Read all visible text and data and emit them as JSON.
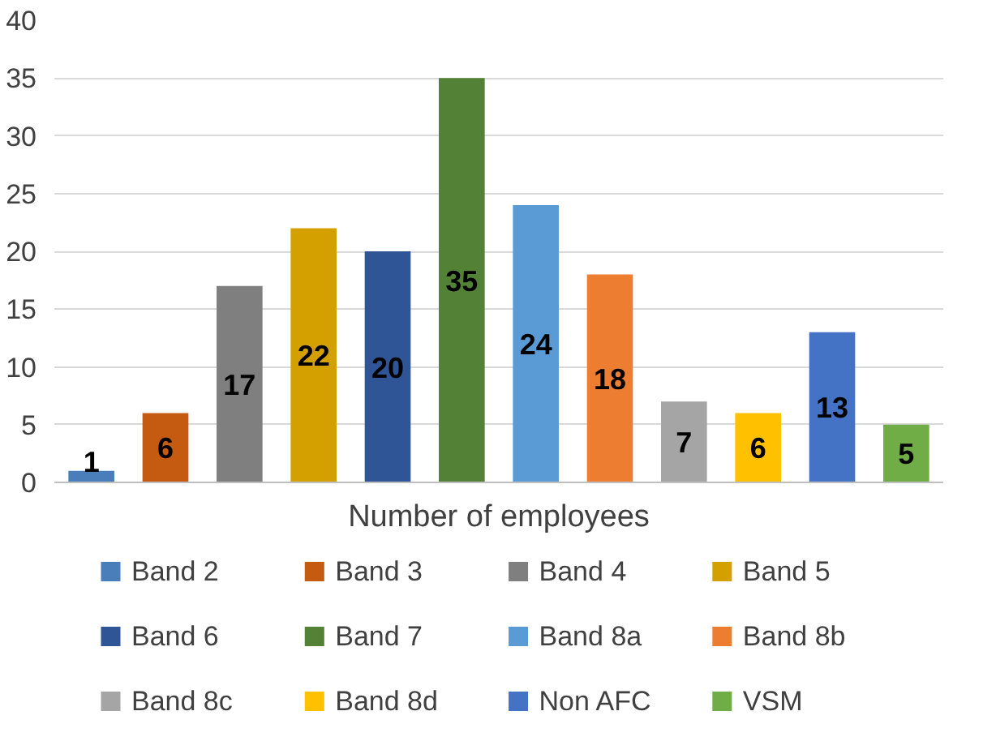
{
  "chart_data": {
    "type": "bar",
    "categories": [
      "Number of employees"
    ],
    "series": [
      {
        "name": "Band 2",
        "color": "#4a7ebb",
        "values": [
          1
        ]
      },
      {
        "name": "Band 3",
        "color": "#c55a11",
        "values": [
          6
        ]
      },
      {
        "name": "Band 4",
        "color": "#7f7f7f",
        "values": [
          17
        ]
      },
      {
        "name": "Band 5",
        "color": "#d4a000",
        "values": [
          22
        ]
      },
      {
        "name": "Band 6",
        "color": "#2f5597",
        "values": [
          20
        ]
      },
      {
        "name": "Band 7",
        "color": "#538135",
        "values": [
          35
        ]
      },
      {
        "name": "Band 8a",
        "color": "#5b9bd5",
        "values": [
          24
        ]
      },
      {
        "name": "Band 8b",
        "color": "#ed7d31",
        "values": [
          18
        ]
      },
      {
        "name": "Band 8c",
        "color": "#a5a5a5",
        "values": [
          7
        ]
      },
      {
        "name": "Band 8d",
        "color": "#ffc000",
        "values": [
          6
        ]
      },
      {
        "name": "Non AFC",
        "color": "#4472c4",
        "values": [
          13
        ]
      },
      {
        "name": "VSM",
        "color": "#70ad47",
        "values": [
          5
        ]
      }
    ],
    "ylim": [
      0,
      40
    ],
    "yticks": [
      0,
      5,
      10,
      15,
      20,
      25,
      30,
      35,
      40
    ],
    "grid": "y",
    "legend": "bottom",
    "data_labels": true
  }
}
